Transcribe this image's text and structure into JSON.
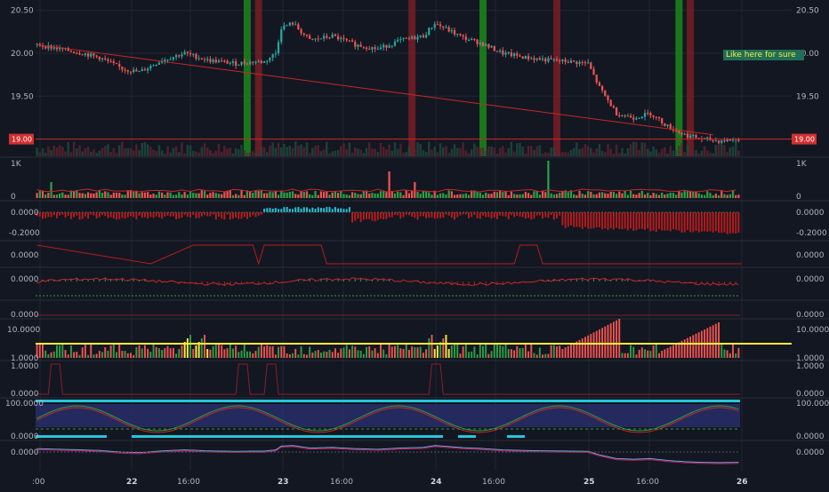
{
  "colors": {
    "background": "#131722",
    "grid": "#232632",
    "axis_text": "#b2b5be",
    "up": "#26a69a",
    "up_dark": "#1b7a3a",
    "down": "#ef5350",
    "down_dark": "#b22222",
    "teal": "#26c6da",
    "yellow": "#ffeb3b",
    "green_band": "#1b7a1b",
    "red_band": "#6b1e24",
    "blue_zone": "#2a2f6e"
  },
  "annotation": "Like here for sure",
  "x_axis": {
    "labels": [
      ":00",
      "22",
      "16:00",
      "23",
      "16:00",
      "24",
      "16:00",
      "25",
      "16:00",
      "26"
    ],
    "bold": [
      "22",
      "23",
      "24",
      "25",
      "26"
    ]
  },
  "price_panel": {
    "y_ticks": [
      "20.50",
      "20.00",
      "19.50",
      "19.00"
    ],
    "level_label": "19.00",
    "level_value": 19.0,
    "ylim": [
      18.82,
      20.6
    ]
  },
  "volume_panel": {
    "ticks": [
      "1K",
      "0"
    ]
  },
  "panel3": {
    "ticks": [
      "0.0000",
      "-0.2000"
    ]
  },
  "panel4": {
    "ticks": [
      "0.0000"
    ]
  },
  "panel5": {
    "ticks": [
      "0.0000"
    ]
  },
  "panel6": {
    "ticks": [
      "0.0000"
    ]
  },
  "panel7": {
    "ticks": [
      "10.0000",
      "1.0000"
    ]
  },
  "panel8": {
    "ticks": [
      "1.0000",
      "0.0000"
    ]
  },
  "panel9": {
    "ticks": [
      "100.0000",
      "0.0000"
    ]
  },
  "panel10": {
    "ticks": [
      "0.0000"
    ]
  },
  "chart_data": {
    "type": "candlestick",
    "price_path": [
      [
        0,
        20.1
      ],
      [
        8,
        20.05
      ],
      [
        16,
        20.0
      ],
      [
        22,
        19.95
      ],
      [
        30,
        19.82
      ],
      [
        36,
        19.78
      ],
      [
        44,
        19.92
      ],
      [
        52,
        20.0
      ],
      [
        60,
        19.92
      ],
      [
        70,
        19.88
      ],
      [
        76,
        19.9
      ],
      [
        80,
        19.9
      ],
      [
        84,
        20.0
      ],
      [
        86,
        20.3
      ],
      [
        90,
        20.35
      ],
      [
        96,
        20.15
      ],
      [
        104,
        20.2
      ],
      [
        112,
        20.1
      ],
      [
        120,
        20.05
      ],
      [
        128,
        20.15
      ],
      [
        136,
        20.2
      ],
      [
        140,
        20.35
      ],
      [
        146,
        20.25
      ],
      [
        150,
        20.18
      ],
      [
        156,
        20.12
      ],
      [
        164,
        20.0
      ],
      [
        172,
        19.95
      ],
      [
        180,
        19.92
      ],
      [
        188,
        19.9
      ],
      [
        194,
        19.88
      ],
      [
        198,
        19.6
      ],
      [
        204,
        19.3
      ],
      [
        210,
        19.25
      ],
      [
        216,
        19.3
      ],
      [
        222,
        19.15
      ],
      [
        228,
        19.05
      ],
      [
        234,
        19.0
      ],
      [
        240,
        18.98
      ],
      [
        248,
        19.0
      ]
    ],
    "bars": 248,
    "trendline": [
      [
        0,
        20.1
      ],
      [
        238,
        19.05
      ]
    ],
    "vertical_bands": [
      {
        "x": 74,
        "color": "green"
      },
      {
        "x": 78,
        "color": "red"
      },
      {
        "x": 132,
        "color": "red"
      },
      {
        "x": 157,
        "color": "green"
      },
      {
        "x": 183,
        "color": "red"
      },
      {
        "x": 226,
        "color": "green"
      },
      {
        "x": 230,
        "color": "red"
      }
    ]
  }
}
